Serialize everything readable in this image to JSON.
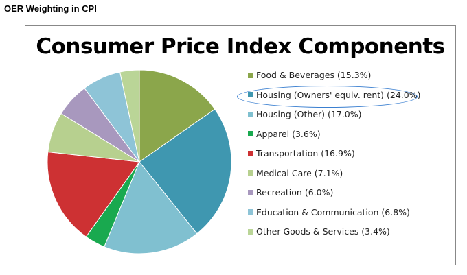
{
  "header": {
    "title": "OER Weighting in CPI"
  },
  "chart_data": {
    "type": "pie",
    "title": "Consumer Price Index Components",
    "legend_position": "right",
    "start": "top-clockwise",
    "highlighted": "Housing (Owners' equiv. rent)",
    "slices": [
      {
        "label": "Food & Beverages",
        "value": 15.3,
        "text": "Food & Beverages (15.3%)",
        "color": "#8ba64b"
      },
      {
        "label": "Housing (Owners' equiv. rent)",
        "value": 24.0,
        "text": "Housing (Owners' equiv. rent) (24.0%)",
        "color": "#3f97b0"
      },
      {
        "label": "Housing (Other)",
        "value": 17.0,
        "text": "Housing (Other) (17.0%)",
        "color": "#80c0d0"
      },
      {
        "label": "Apparel",
        "value": 3.6,
        "text": "Apparel (3.6%)",
        "color": "#19a94f"
      },
      {
        "label": "Transportation",
        "value": 16.9,
        "text": "Transportation (16.9%)",
        "color": "#cd3133"
      },
      {
        "label": "Medical Care",
        "value": 7.1,
        "text": "Medical Care (7.1%)",
        "color": "#b7d08f"
      },
      {
        "label": "Recreation",
        "value": 6.0,
        "text": "Recreation (6.0%)",
        "color": "#a898be"
      },
      {
        "label": "Education & Communication",
        "value": 6.8,
        "text": "Education & Communication (6.8%)",
        "color": "#8ec4d7"
      },
      {
        "label": "Other Goods & Services",
        "value": 3.4,
        "text": "Other Goods & Services (3.4%)",
        "color": "#bad597"
      }
    ]
  }
}
